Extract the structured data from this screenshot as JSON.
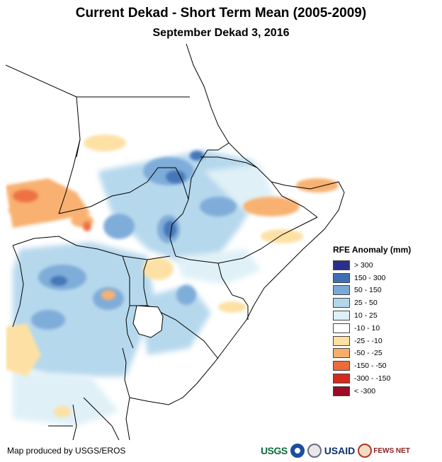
{
  "title": "Current Dekad - Short Term Mean (2005-2009)",
  "subtitle": "September Dekad 3, 2016",
  "legend": {
    "title": "RFE Anomaly (mm)",
    "items": [
      {
        "label": "> 300",
        "color": "#2a2f8f"
      },
      {
        "label": "150 - 300",
        "color": "#3e6fb4"
      },
      {
        "label": "50 - 150",
        "color": "#79a9d8"
      },
      {
        "label": "25 - 50",
        "color": "#b2d6ec"
      },
      {
        "label": "10 - 25",
        "color": "#def0f7"
      },
      {
        "label": "-10 - 10",
        "color": "#ffffff"
      },
      {
        "label": "-25 - -10",
        "color": "#fde0a0"
      },
      {
        "label": "-50 - -25",
        "color": "#f8ad6a"
      },
      {
        "label": "-150 - -50",
        "color": "#ee6a3a"
      },
      {
        "label": "-300 - -150",
        "color": "#d22a20"
      },
      {
        "label": "< -300",
        "color": "#9c0a26"
      }
    ]
  },
  "credit": "Map produced by USGS/EROS",
  "logos": {
    "usgs": "USGS",
    "usaid": "USAID",
    "fews": "FEWS NET"
  }
}
